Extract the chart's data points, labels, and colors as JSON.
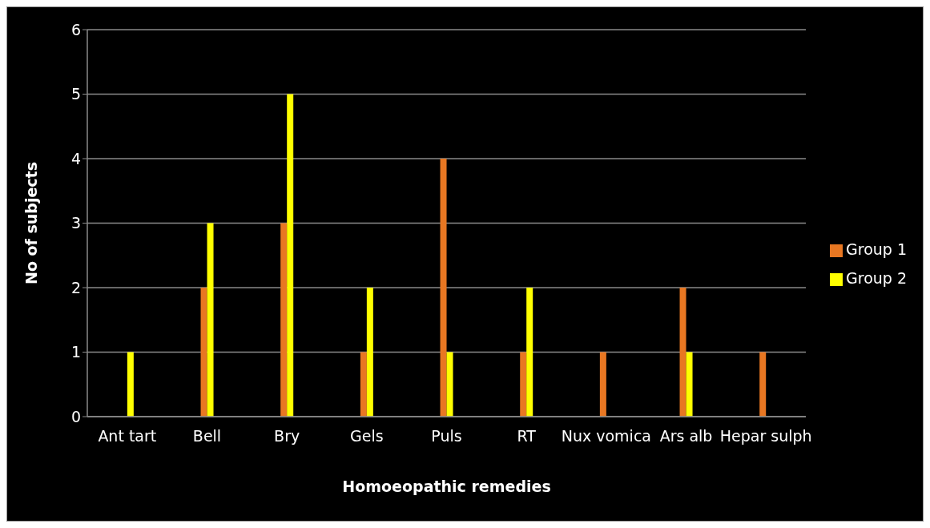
{
  "chart_data": {
    "type": "bar",
    "xlabel": "Homoeopathic remedies",
    "ylabel": "No of subjects",
    "categories": [
      "Ant tart",
      "Bell",
      "Bry",
      "Gels",
      "Puls",
      "RT",
      "Nux vomica",
      "Ars alb",
      "Hepar sulph"
    ],
    "series": [
      {
        "name": "Group 1",
        "color": "#e87722",
        "values": [
          0,
          2,
          3,
          1,
          4,
          1,
          1,
          2,
          1
        ]
      },
      {
        "name": "Group 2",
        "color": "#ffff00",
        "values": [
          1,
          3,
          5,
          2,
          1,
          2,
          0,
          1,
          0
        ]
      }
    ],
    "ylim": [
      0,
      6
    ],
    "yticks": [
      0,
      1,
      2,
      3,
      4,
      5,
      6
    ],
    "grid": "y",
    "legend": "right"
  }
}
